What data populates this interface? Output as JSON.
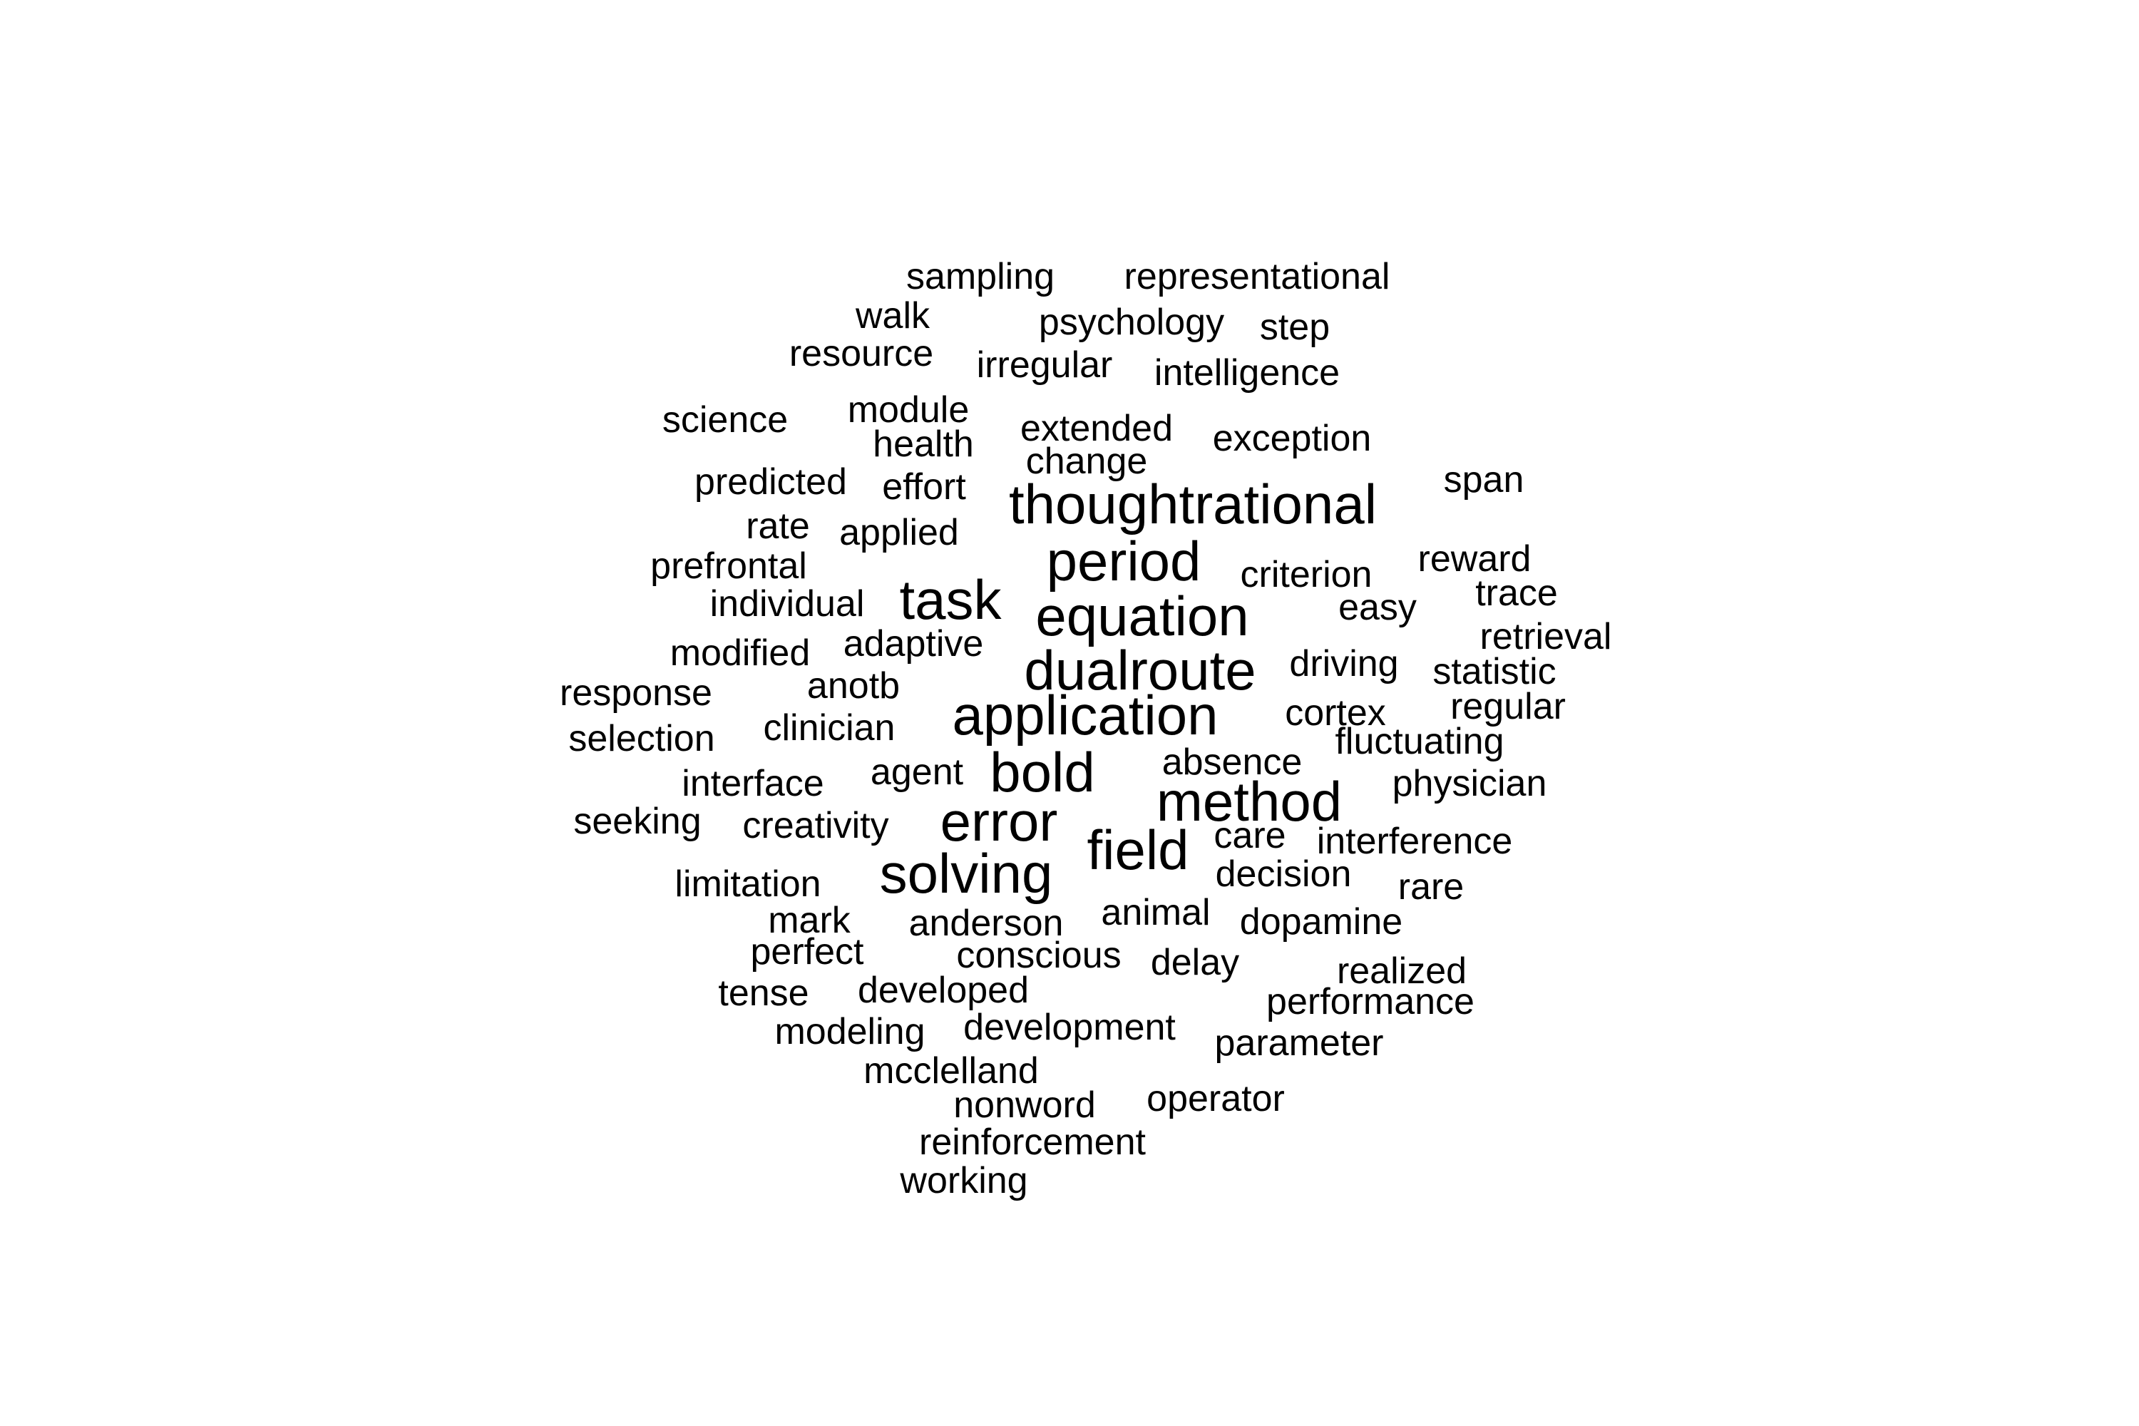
{
  "word_cloud": {
    "words": [
      "sampling",
      "representational",
      "walk",
      "psychology",
      "step",
      "resource",
      "irregular",
      "intelligence",
      "science",
      "module",
      "extended",
      "health",
      "exception",
      "change",
      "predicted",
      "effort",
      "thoughtrational",
      "span",
      "rate",
      "applied",
      "period",
      "prefrontal",
      "criterion",
      "reward",
      "task",
      "individual",
      "equation",
      "easy",
      "trace",
      "modified",
      "adaptive",
      "retrieval",
      "dualroute",
      "driving",
      "statistic",
      "response",
      "anotb",
      "regular",
      "application",
      "cortex",
      "selection",
      "clinician",
      "fluctuating",
      "absence",
      "bold",
      "agent",
      "interface",
      "physician",
      "method",
      "seeking",
      "creativity",
      "error",
      "care",
      "interference",
      "field",
      "decision",
      "limitation",
      "solving",
      "rare",
      "mark",
      "animal",
      "anderson",
      "dopamine",
      "perfect",
      "conscious",
      "delay",
      "realized",
      "tense",
      "developed",
      "performance",
      "modeling",
      "development",
      "parameter",
      "mcclelland",
      "nonword",
      "operator",
      "reinforcement",
      "working"
    ],
    "text_color": "#000000",
    "background_color": "#ffffff"
  }
}
